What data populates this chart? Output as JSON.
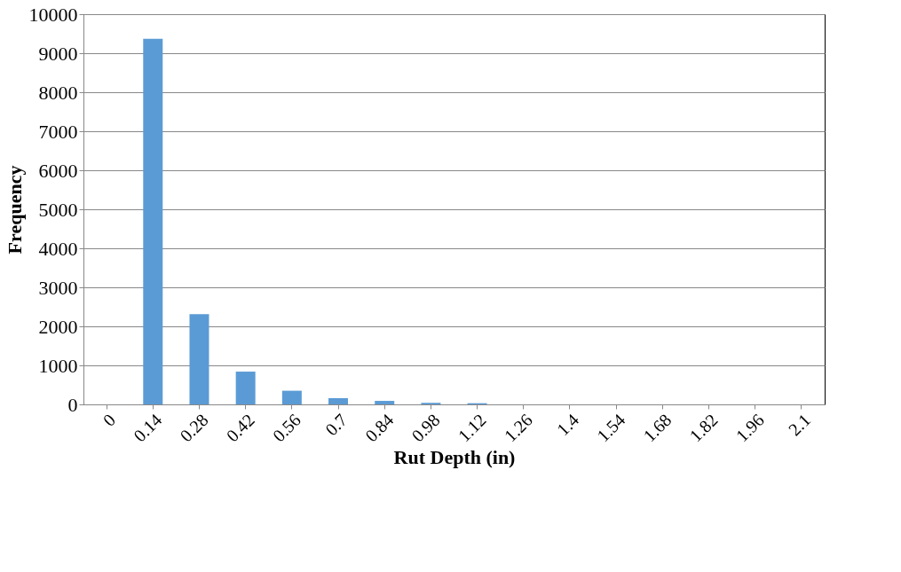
{
  "chart_data": {
    "type": "bar",
    "xlabel": "Rut Depth (in)",
    "ylabel": "Frequency",
    "categories": [
      "0",
      "0.14",
      "0.28",
      "0.42",
      "0.56",
      "0.7",
      "0.84",
      "0.98",
      "1.12",
      "1.26",
      "1.4",
      "1.54",
      "1.68",
      "1.82",
      "1.96",
      "2.1"
    ],
    "values": [
      0,
      9370,
      2310,
      840,
      350,
      160,
      90,
      40,
      30,
      0,
      0,
      0,
      0,
      0,
      0,
      0
    ],
    "color": "#5b9bd5",
    "ylim": [
      0,
      10000
    ],
    "yticks": [
      0,
      1000,
      2000,
      3000,
      4000,
      5000,
      6000,
      7000,
      8000,
      9000,
      10000
    ],
    "grid": "y"
  }
}
